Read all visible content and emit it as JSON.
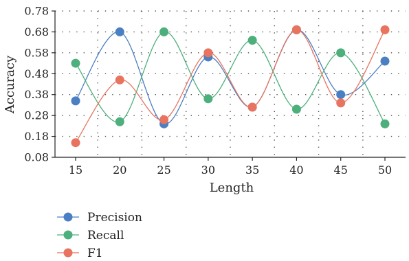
{
  "chart_data": {
    "type": "line",
    "title": "",
    "xlabel": "Length",
    "ylabel": "Accuracy",
    "x": [
      15,
      20,
      25,
      30,
      35,
      40,
      45,
      50
    ],
    "xticks": [
      "15",
      "20",
      "25",
      "30",
      "35",
      "40",
      "45",
      "50"
    ],
    "ylim": [
      0.08,
      0.78
    ],
    "yticks": [
      "0.08",
      "0.18",
      "0.28",
      "0.38",
      "0.48",
      "0.58",
      "0.68",
      "0.78"
    ],
    "grid": "dotted",
    "smooth": true,
    "legend_position": "bottom-left",
    "series": [
      {
        "name": "Precision",
        "color": "#4a7fc3",
        "values": [
          0.35,
          0.68,
          0.24,
          0.56,
          0.32,
          0.69,
          0.38,
          0.54
        ]
      },
      {
        "name": "Recall",
        "color": "#4daf7c",
        "values": [
          0.53,
          0.25,
          0.68,
          0.36,
          0.64,
          0.31,
          0.58,
          0.24
        ]
      },
      {
        "name": "F1",
        "color": "#e8745f",
        "values": [
          0.15,
          0.45,
          0.26,
          0.58,
          0.32,
          0.69,
          0.34,
          0.69
        ]
      }
    ]
  }
}
